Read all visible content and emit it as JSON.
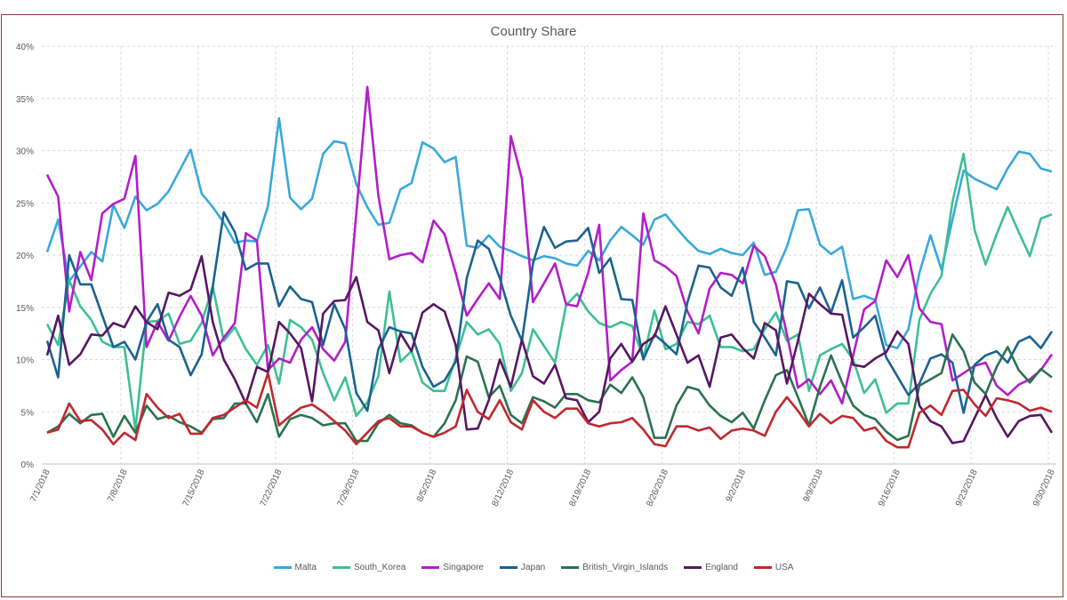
{
  "chart_data": {
    "type": "line",
    "title": "Country Share",
    "xlabel": "",
    "ylabel": "",
    "ylim": [
      0,
      40
    ],
    "y_ticks": [
      "0%",
      "5%",
      "10%",
      "15%",
      "20%",
      "25%",
      "30%",
      "35%",
      "40%"
    ],
    "x_tick_labels": [
      "7/1/2018",
      "7/8/2018",
      "7/15/2018",
      "7/22/2018",
      "7/29/2018",
      "8/5/2018",
      "8/12/2018",
      "8/19/2018",
      "8/26/2018",
      "9/2/2018",
      "9/9/2018",
      "9/16/2018",
      "9/23/2018",
      "9/30/2018"
    ],
    "x": [
      "7/1/2018",
      "7/2/2018",
      "7/3/2018",
      "7/4/2018",
      "7/5/2018",
      "7/6/2018",
      "7/7/2018",
      "7/8/2018",
      "7/9/2018",
      "7/10/2018",
      "7/11/2018",
      "7/12/2018",
      "7/13/2018",
      "7/14/2018",
      "7/15/2018",
      "7/16/2018",
      "7/17/2018",
      "7/18/2018",
      "7/19/2018",
      "7/20/2018",
      "7/21/2018",
      "7/22/2018",
      "7/23/2018",
      "7/24/2018",
      "7/25/2018",
      "7/26/2018",
      "7/27/2018",
      "7/28/2018",
      "7/29/2018",
      "7/30/2018",
      "7/31/2018",
      "8/1/2018",
      "8/2/2018",
      "8/3/2018",
      "8/4/2018",
      "8/5/2018",
      "8/6/2018",
      "8/7/2018",
      "8/8/2018",
      "8/9/2018",
      "8/10/2018",
      "8/11/2018",
      "8/12/2018",
      "8/13/2018",
      "8/14/2018",
      "8/15/2018",
      "8/16/2018",
      "8/17/2018",
      "8/18/2018",
      "8/19/2018",
      "8/20/2018",
      "8/21/2018",
      "8/22/2018",
      "8/23/2018",
      "8/24/2018",
      "8/25/2018",
      "8/26/2018",
      "8/27/2018",
      "8/28/2018",
      "8/29/2018",
      "8/30/2018",
      "8/31/2018",
      "9/1/2018",
      "9/2/2018",
      "9/3/2018",
      "9/4/2018",
      "9/5/2018",
      "9/6/2018",
      "9/7/2018",
      "9/8/2018",
      "9/9/2018",
      "9/10/2018",
      "9/11/2018",
      "9/12/2018",
      "9/13/2018",
      "9/14/2018",
      "9/15/2018",
      "9/16/2018",
      "9/17/2018",
      "9/18/2018",
      "9/19/2018",
      "9/20/2018",
      "9/21/2018",
      "9/22/2018",
      "9/23/2018",
      "9/24/2018",
      "9/25/2018",
      "9/26/2018",
      "9/27/2018",
      "9/28/2018",
      "9/29/2018",
      "9/30/2018"
    ],
    "y_unit": "%",
    "grid": true,
    "legend_position": "bottom",
    "series": [
      {
        "name": "Malta",
        "color": "#3aa8dc",
        "values": [
          20.3,
          23.4,
          17.5,
          18.9,
          20.3,
          19.4,
          24.8,
          22.6,
          25.6,
          24.3,
          24.9,
          26.1,
          28.1,
          30.1,
          25.9,
          24.6,
          23.1,
          21.2,
          21.4,
          21.3,
          24.7,
          33.1,
          25.5,
          24.4,
          25.4,
          29.7,
          30.9,
          30.7,
          26.8,
          24.6,
          22.9,
          23.1,
          26.3,
          26.9,
          30.8,
          30.2,
          28.9,
          29.4,
          20.9,
          20.7,
          21.9,
          20.8,
          20.4,
          19.9,
          19.5,
          19.9,
          19.7,
          19.2,
          19.0,
          20.4,
          19.5,
          21.4,
          22.7,
          21.9,
          21.0,
          23.4,
          23.9,
          22.6,
          21.4,
          20.4,
          20.1,
          20.6,
          20.2,
          20.0,
          21.2,
          18.1,
          18.4,
          20.8,
          24.3,
          24.4,
          21.0,
          20.1,
          20.8,
          15.8,
          16.1,
          15.7,
          11.4,
          11.1,
          12.9,
          18.3,
          21.9,
          18.6,
          23.4,
          28.1,
          27.3,
          26.8,
          26.3,
          28.3,
          29.9,
          29.7,
          28.3,
          28.0
        ]
      },
      {
        "name": "South_Korea",
        "color": "#3dbf95",
        "values": [
          13.4,
          11.4,
          17.6,
          15.1,
          13.8,
          11.7,
          11.2,
          11.2,
          3.3,
          13.6,
          13.7,
          14.4,
          11.5,
          11.8,
          13.5,
          17.0,
          11.8,
          13.1,
          11.0,
          9.5,
          11.4,
          7.7,
          13.8,
          13.1,
          11.9,
          8.7,
          6.1,
          8.3,
          4.6,
          5.9,
          8.4,
          16.5,
          9.8,
          10.8,
          7.8,
          7.0,
          7.0,
          10.1,
          13.6,
          12.4,
          12.9,
          11.5,
          7.0,
          8.7,
          12.9,
          11.3,
          9.7,
          15.2,
          16.3,
          14.6,
          13.5,
          13.1,
          13.6,
          13.2,
          10.1,
          14.7,
          11.0,
          11.5,
          13.6,
          13.4,
          14.2,
          11.2,
          11.2,
          10.8,
          11.0,
          12.9,
          14.5,
          11.8,
          12.4,
          7.0,
          10.4,
          11.0,
          11.5,
          10.0,
          6.8,
          8.1,
          4.9,
          5.8,
          5.8,
          13.8,
          16.3,
          18.0,
          25.1,
          29.7,
          22.4,
          19.1,
          22.0,
          24.6,
          22.2,
          19.9,
          23.5,
          23.9
        ]
      },
      {
        "name": "Singapore",
        "color": "#b21fc7",
        "values": [
          27.7,
          25.6,
          14.6,
          20.3,
          17.6,
          24.0,
          24.9,
          25.4,
          29.5,
          11.2,
          13.6,
          11.8,
          14.1,
          16.1,
          14.2,
          10.4,
          12.1,
          13.5,
          22.1,
          21.4,
          9.0,
          10.1,
          9.7,
          11.9,
          13.1,
          11.0,
          9.9,
          11.7,
          24.0,
          36.1,
          25.7,
          19.6,
          20.0,
          20.2,
          19.3,
          23.3,
          22.0,
          18.3,
          14.2,
          15.8,
          17.3,
          15.8,
          31.4,
          27.3,
          15.5,
          17.3,
          19.2,
          15.3,
          15.1,
          18.3,
          22.9,
          8.0,
          9.0,
          9.8,
          24.0,
          19.5,
          18.9,
          18.0,
          14.6,
          12.5,
          16.8,
          18.3,
          18.1,
          17.3,
          20.9,
          19.9,
          17.2,
          12.4,
          7.3,
          8.1,
          6.7,
          8.0,
          5.8,
          10.4,
          14.8,
          15.6,
          19.5,
          17.9,
          20.0,
          14.9,
          13.6,
          13.4,
          8.0,
          8.7,
          9.4,
          9.7,
          7.5,
          6.6,
          7.6,
          8.1,
          9.0,
          10.5
        ]
      },
      {
        "name": "Japan",
        "color": "#1b6390",
        "values": [
          11.8,
          8.3,
          20.0,
          17.2,
          17.2,
          14.2,
          11.2,
          11.7,
          10.0,
          13.6,
          15.3,
          11.9,
          11.2,
          8.5,
          10.5,
          17.0,
          24.1,
          22.2,
          18.6,
          19.2,
          19.2,
          15.1,
          17.0,
          15.8,
          15.5,
          11.4,
          15.3,
          12.9,
          6.8,
          5.1,
          11.0,
          13.1,
          12.7,
          12.5,
          9.3,
          7.4,
          8.0,
          9.8,
          17.8,
          21.4,
          20.6,
          17.8,
          14.2,
          11.8,
          19.2,
          22.7,
          20.7,
          21.3,
          21.4,
          22.6,
          18.3,
          19.7,
          15.8,
          15.7,
          10.0,
          12.4,
          11.5,
          10.5,
          15.5,
          19.0,
          18.8,
          16.9,
          16.1,
          18.8,
          13.6,
          12.1,
          10.4,
          17.5,
          17.3,
          14.9,
          16.9,
          14.5,
          17.6,
          12.1,
          13.1,
          14.2,
          10.2,
          8.4,
          6.6,
          7.7,
          10.1,
          10.5,
          9.7,
          4.9,
          9.5,
          10.4,
          10.8,
          9.7,
          11.7,
          12.2,
          11.1,
          12.7
        ]
      },
      {
        "name": "British_Virgin_Islands",
        "color": "#2a7350",
        "values": [
          3.0,
          3.6,
          4.8,
          3.9,
          4.7,
          4.8,
          2.6,
          4.6,
          3.0,
          5.6,
          4.3,
          4.6,
          4.0,
          3.6,
          3.0,
          4.3,
          4.4,
          5.8,
          5.8,
          4.0,
          6.7,
          2.6,
          4.3,
          4.7,
          4.4,
          3.7,
          3.9,
          3.9,
          2.2,
          2.2,
          3.9,
          4.7,
          3.9,
          3.7,
          3.0,
          2.6,
          3.9,
          6.1,
          10.3,
          9.8,
          6.4,
          7.5,
          4.7,
          3.9,
          6.4,
          6.0,
          5.4,
          6.7,
          6.7,
          6.1,
          5.9,
          7.6,
          6.8,
          8.3,
          6.4,
          2.5,
          2.5,
          5.6,
          7.4,
          7.1,
          5.6,
          4.6,
          4.0,
          4.9,
          3.4,
          6.1,
          8.5,
          9.0,
          6.4,
          3.7,
          7.4,
          10.4,
          7.8,
          5.6,
          4.7,
          4.3,
          3.1,
          2.3,
          2.7,
          7.5,
          8.1,
          8.7,
          12.4,
          10.8,
          7.8,
          6.7,
          9.3,
          11.2,
          9.0,
          7.8,
          9.1,
          8.3
        ]
      },
      {
        "name": "England",
        "color": "#571763",
        "values": [
          10.4,
          14.2,
          9.5,
          10.5,
          12.4,
          12.3,
          13.5,
          13.1,
          15.1,
          13.6,
          12.9,
          16.4,
          16.1,
          16.7,
          19.9,
          13.6,
          10.0,
          8.1,
          5.8,
          9.3,
          8.8,
          13.6,
          12.5,
          11.1,
          6.0,
          14.4,
          15.6,
          15.7,
          17.9,
          13.6,
          12.8,
          8.7,
          12.5,
          10.8,
          14.5,
          15.3,
          14.6,
          11.4,
          3.3,
          3.4,
          6.1,
          10.0,
          7.4,
          11.9,
          8.4,
          7.7,
          9.5,
          6.3,
          6.1,
          4.0,
          5.0,
          10.1,
          11.5,
          9.8,
          11.5,
          12.2,
          15.1,
          12.4,
          9.7,
          10.4,
          7.4,
          12.1,
          12.4,
          11.1,
          10.1,
          13.5,
          12.8,
          7.7,
          11.8,
          16.3,
          15.3,
          14.4,
          14.3,
          9.5,
          9.3,
          10.1,
          10.7,
          12.7,
          11.5,
          5.6,
          4.1,
          3.6,
          2.0,
          2.2,
          4.4,
          6.6,
          4.4,
          2.6,
          4.1,
          4.6,
          4.7,
          3.0
        ]
      },
      {
        "name": "USA",
        "color": "#c0282f",
        "values": [
          3.0,
          3.3,
          5.8,
          4.1,
          4.2,
          3.3,
          1.9,
          3.0,
          2.3,
          6.7,
          5.4,
          4.4,
          4.8,
          2.9,
          2.9,
          4.4,
          4.7,
          5.4,
          6.1,
          5.4,
          8.7,
          3.7,
          4.6,
          5.4,
          5.7,
          5.0,
          4.1,
          3.2,
          1.9,
          3.0,
          4.1,
          4.4,
          3.6,
          3.6,
          3.0,
          2.6,
          3.0,
          3.6,
          7.1,
          5.0,
          4.3,
          6.1,
          4.0,
          3.3,
          6.1,
          5.0,
          4.4,
          5.3,
          5.3,
          3.9,
          3.6,
          3.9,
          4.0,
          4.4,
          3.3,
          1.9,
          1.7,
          3.6,
          3.6,
          3.2,
          3.5,
          2.4,
          3.2,
          3.4,
          3.2,
          2.7,
          5.0,
          6.4,
          5.1,
          3.6,
          4.8,
          3.9,
          4.6,
          4.4,
          3.2,
          3.5,
          2.2,
          1.6,
          1.6,
          4.9,
          5.6,
          4.7,
          7.0,
          7.1,
          5.7,
          4.6,
          6.3,
          6.1,
          5.8,
          5.1,
          5.4,
          5.0
        ]
      }
    ]
  }
}
